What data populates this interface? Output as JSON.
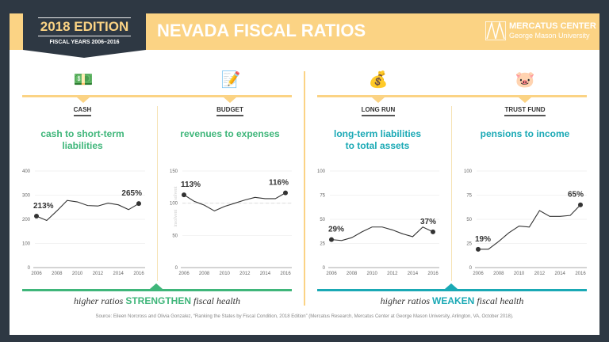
{
  "header": {
    "edition": "2018 EDITION",
    "fiscal_years": "FISCAL YEARS 2006–2016",
    "title": "NEVADA FISCAL RATIOS",
    "logo_line1": "MERCATUS CENTER",
    "logo_line2": "George Mason University"
  },
  "colors": {
    "dark": "#2e3843",
    "yellow": "#fbd384",
    "green": "#3fb67a",
    "teal": "#1aa9b5"
  },
  "panels": [
    {
      "category": "CASH",
      "title1": "cash to short-term",
      "title2": "liabilities",
      "icon": "cash-coins-icon",
      "glyph": "💵"
    },
    {
      "category": "BUDGET",
      "title1": "revenues to expenses",
      "title2": "",
      "icon": "budget-document-icon",
      "glyph": "📝"
    },
    {
      "category": "LONG RUN",
      "title1": "long-term liabilities",
      "title2": "to total assets",
      "icon": "stacked-money-icon",
      "glyph": "💰"
    },
    {
      "category": "TRUST FUND",
      "title1": "pensions to income",
      "title2": "",
      "icon": "piggy-bank-icon",
      "glyph": "🐷"
    }
  ],
  "footer": {
    "left_pre": "higher ratios",
    "left_key": "STRENGTHEN",
    "left_post": "fiscal health",
    "right_pre": "higher ratios",
    "right_key": "WEAKEN",
    "right_post": "fiscal health",
    "source": "Source: Eileen Norcross and Olivia Gonzalez, “Ranking the States by Fiscal Condition, 2018 Edition” (Mercatus Research, Mercatus Center at George Mason University, Arlington, VA, October 2018)."
  },
  "chart_data": [
    {
      "type": "line",
      "x": [
        2006,
        2007,
        2008,
        2009,
        2010,
        2011,
        2012,
        2013,
        2014,
        2015,
        2016
      ],
      "values": [
        213,
        195,
        235,
        278,
        272,
        257,
        255,
        267,
        260,
        240,
        265
      ],
      "ylim": [
        0,
        400
      ],
      "yticks": [
        0,
        100,
        200,
        300,
        400
      ],
      "xticks": [
        2006,
        2008,
        2010,
        2012,
        2014,
        2016
      ],
      "labels": [
        "213%",
        "265%"
      ],
      "grid": true
    },
    {
      "type": "line",
      "x": [
        2006,
        2007,
        2008,
        2009,
        2010,
        2011,
        2012,
        2013,
        2014,
        2015,
        2016
      ],
      "values": [
        113,
        103,
        97,
        88,
        95,
        100,
        105,
        109,
        107,
        107,
        116
      ],
      "ylim": [
        0,
        150
      ],
      "yticks": [
        0,
        50,
        100,
        150
      ],
      "xticks": [
        2006,
        2008,
        2010,
        2012,
        2014,
        2016
      ],
      "labels": [
        "113%",
        "116%"
      ],
      "grid": true,
      "reference_line": 100,
      "above_label": "solvent",
      "below_label": "insolvent"
    },
    {
      "type": "line",
      "x": [
        2006,
        2007,
        2008,
        2009,
        2010,
        2011,
        2012,
        2013,
        2014,
        2015,
        2016
      ],
      "values": [
        29,
        28,
        31,
        37,
        42,
        42,
        39,
        35,
        32,
        42,
        37
      ],
      "ylim": [
        0,
        100
      ],
      "yticks": [
        0,
        25,
        50,
        75,
        100
      ],
      "xticks": [
        2006,
        2008,
        2010,
        2012,
        2014,
        2016
      ],
      "labels": [
        "29%",
        "37%"
      ],
      "grid": true
    },
    {
      "type": "line",
      "x": [
        2006,
        2007,
        2008,
        2009,
        2010,
        2011,
        2012,
        2013,
        2014,
        2015,
        2016
      ],
      "values": [
        19,
        19,
        27,
        36,
        43,
        42,
        59,
        53,
        53,
        54,
        65
      ],
      "ylim": [
        0,
        100
      ],
      "yticks": [
        0,
        25,
        50,
        75,
        100
      ],
      "xticks": [
        2006,
        2008,
        2010,
        2012,
        2014,
        2016
      ],
      "labels": [
        "19%",
        "65%"
      ],
      "grid": true
    }
  ]
}
